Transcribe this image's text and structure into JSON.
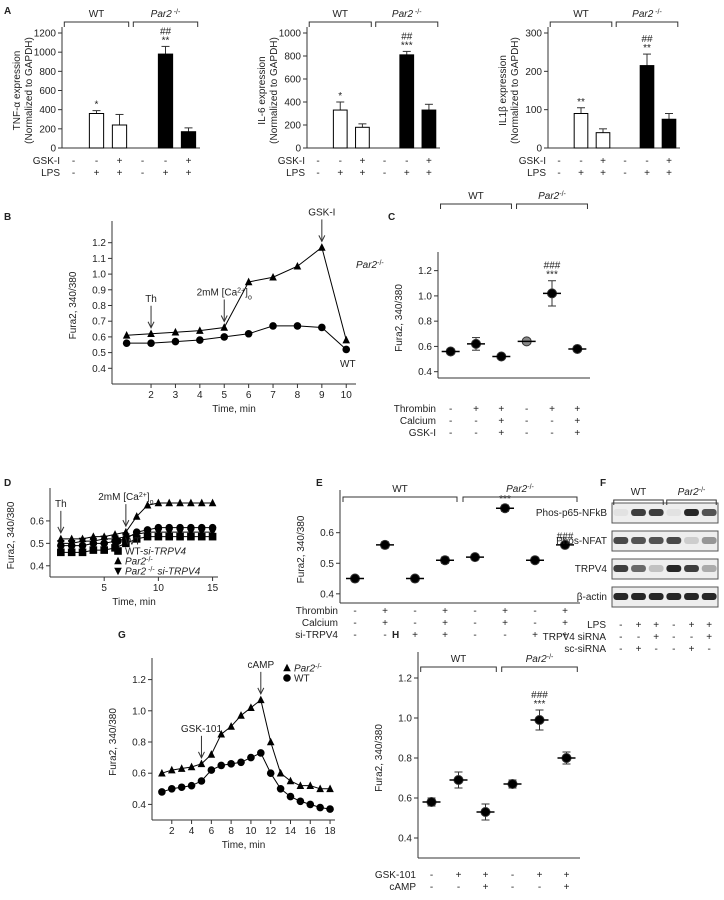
{
  "chart_data": [
    {
      "type": "bar",
      "panel": "A",
      "ylabel": [
        "TNF-α expression",
        "(Normalized to GAPDH)"
      ],
      "groups": [
        {
          "name": "WT"
        },
        {
          "name": [
            {
              "text": "Par2",
              "style": "italic"
            },
            {
              "text": " -/-",
              "style": "sup"
            }
          ]
        }
      ],
      "values": [
        null,
        360,
        240,
        null,
        980,
        170
      ],
      "errors": [
        null,
        30,
        110,
        null,
        80,
        40
      ],
      "colors": [
        "#ffffff",
        "#ffffff",
        "#ffffff",
        "#000000",
        "#000000",
        "#000000"
      ],
      "annotations": [
        null,
        [
          "*"
        ],
        null,
        null,
        [
          "##",
          "**"
        ],
        null
      ],
      "rows": [
        {
          "label": "GSK-I",
          "signs": [
            "-",
            "-",
            "+",
            "-",
            "-",
            "+"
          ]
        },
        {
          "label": "LPS",
          "signs": [
            "-",
            "+",
            "+",
            "-",
            "+",
            "+"
          ]
        }
      ],
      "ylim": [
        0,
        1200
      ],
      "yticks": [
        0,
        200,
        400,
        600,
        800,
        1000,
        1200
      ]
    },
    {
      "type": "bar",
      "ylabel": [
        "IL-6 expression",
        "(Normalized to GAPDH)"
      ],
      "groups": [
        {
          "name": "WT"
        },
        {
          "name": [
            {
              "text": "Par2",
              "style": "italic"
            },
            {
              "text": " -/-",
              "style": "sup"
            }
          ]
        }
      ],
      "values": [
        null,
        330,
        180,
        null,
        810,
        330
      ],
      "errors": [
        null,
        70,
        30,
        null,
        30,
        50
      ],
      "colors": [
        "#ffffff",
        "#ffffff",
        "#ffffff",
        "#000000",
        "#000000",
        "#000000"
      ],
      "annotations": [
        null,
        [
          "*"
        ],
        null,
        null,
        [
          "##",
          "***"
        ],
        null
      ],
      "rows": [
        {
          "label": "GSK-I",
          "signs": [
            "-",
            "-",
            "+",
            "-",
            "-",
            "+"
          ]
        },
        {
          "label": "LPS",
          "signs": [
            "-",
            "+",
            "+",
            "-",
            "+",
            "+"
          ]
        }
      ],
      "ylim": [
        0,
        1000
      ],
      "yticks": [
        0,
        200,
        400,
        600,
        800,
        1000
      ]
    },
    {
      "type": "bar",
      "ylabel": [
        "IL1β expression",
        "(Normalized to GAPDH)"
      ],
      "groups": [
        {
          "name": "WT"
        },
        {
          "name": [
            {
              "text": "Par2",
              "style": "italic"
            },
            {
              "text": " -/-",
              "style": "sup"
            }
          ]
        }
      ],
      "values": [
        null,
        90,
        40,
        null,
        215,
        75
      ],
      "errors": [
        null,
        15,
        10,
        null,
        30,
        15
      ],
      "colors": [
        "#ffffff",
        "#ffffff",
        "#ffffff",
        "#000000",
        "#000000",
        "#000000"
      ],
      "annotations": [
        null,
        [
          "**"
        ],
        null,
        null,
        [
          "##",
          "**"
        ],
        null
      ],
      "rows": [
        {
          "label": "GSK-I",
          "signs": [
            "-",
            "-",
            "+",
            "-",
            "-",
            "+"
          ]
        },
        {
          "label": "LPS",
          "signs": [
            "-",
            "+",
            "+",
            "-",
            "+",
            "+"
          ]
        }
      ],
      "ylim": [
        0,
        300
      ],
      "yticks": [
        0,
        100,
        200,
        300
      ]
    },
    {
      "type": "line",
      "panel": "B",
      "ylabel": "Fura2, 340/380",
      "xlabel": "Time, min",
      "x": [
        1,
        2,
        3,
        4,
        5,
        6,
        7,
        8,
        9,
        10
      ],
      "series": [
        {
          "name": "WT",
          "marker": "circle",
          "color": "#000000",
          "values": [
            0.56,
            0.56,
            0.57,
            0.58,
            0.6,
            0.62,
            0.67,
            0.67,
            0.66,
            0.52
          ]
        },
        {
          "name": [
            {
              "text": "Par2",
              "style": "italic"
            },
            {
              "text": "-/-",
              "style": "sup"
            }
          ],
          "marker": "triangle",
          "color": "#000000",
          "values": [
            0.61,
            0.62,
            0.63,
            0.64,
            0.66,
            0.95,
            0.98,
            1.05,
            1.17,
            0.58
          ]
        }
      ],
      "annotations": [
        {
          "text": "Th",
          "x": 2
        },
        {
          "text": [
            {
              "text": "2mM [Ca"
            },
            {
              "text": "2+",
              "style": "sup"
            },
            {
              "text": "]"
            },
            {
              "text": "o",
              "style": "sub"
            }
          ],
          "x": 5
        },
        {
          "text": "GSK-I",
          "x": 9
        }
      ],
      "legend": "inline",
      "xlim": [
        0.4,
        10.4
      ],
      "xticks": [
        2,
        3,
        4,
        5,
        6,
        7,
        8,
        9,
        10
      ],
      "ylim": [
        0.3,
        1.3
      ],
      "yticks": [
        0.4,
        0.5,
        0.6,
        0.7,
        0.8,
        0.9,
        {
          "value": 1,
          "label": "1.0"
        },
        1.1,
        1.2
      ]
    },
    {
      "type": "dot",
      "panel": "C",
      "ylabel": "Fura2, 340/380",
      "groups": [
        {
          "name": "WT"
        },
        {
          "name": [
            {
              "text": "Par2",
              "style": "italic"
            },
            {
              "text": "-/-",
              "style": "sup"
            }
          ]
        }
      ],
      "values": [
        0.56,
        0.62,
        0.52,
        0.64,
        1.02,
        0.58
      ],
      "errors": [
        0.02,
        0.05,
        0.01,
        0.02,
        0.1,
        0.02
      ],
      "colors": [
        "#000000",
        "#000000",
        "#000000",
        "#888888",
        "#000000",
        "#000000"
      ],
      "annotations": [
        null,
        null,
        null,
        null,
        [
          "###",
          "***"
        ],
        null
      ],
      "rows": [
        {
          "label": "Thrombin",
          "signs": [
            "-",
            "+",
            "+",
            "-",
            "+",
            "+"
          ]
        },
        {
          "label": "Calcium",
          "signs": [
            "-",
            "-",
            "+",
            "-",
            "-",
            "+"
          ]
        },
        {
          "label": "GSK-I",
          "signs": [
            "-",
            "-",
            "+",
            "-",
            "-",
            "+"
          ]
        }
      ],
      "ylim": [
        0.35,
        1.3
      ],
      "yticks": [
        0.4,
        0.6,
        0.8,
        {
          "value": 1,
          "label": "1.0"
        },
        1.2
      ]
    },
    {
      "type": "line",
      "panel": "D",
      "ylabel": "Fura2, 340/380",
      "xlabel": "Time, min",
      "x": [
        1,
        2,
        3,
        4,
        5,
        6,
        7,
        8,
        9,
        10,
        11,
        12,
        13,
        14,
        15
      ],
      "series": [
        {
          "name": "WT",
          "marker": "circle",
          "color": "#000000",
          "values": [
            0.49,
            0.49,
            0.49,
            0.5,
            0.5,
            0.51,
            0.52,
            0.55,
            0.56,
            0.57,
            0.57,
            0.57,
            0.57,
            0.57,
            0.57
          ]
        },
        {
          "name": [
            {
              "text": "WT-"
            },
            {
              "text": "si-TRPV4",
              "style": "italic"
            }
          ],
          "marker": "square",
          "color": "#000000",
          "values": [
            0.46,
            0.46,
            0.46,
            0.47,
            0.47,
            0.48,
            0.5,
            0.52,
            0.53,
            0.53,
            0.53,
            0.53,
            0.53,
            0.53,
            0.53
          ]
        },
        {
          "name": [
            {
              "text": "Par2",
              "style": "italic"
            },
            {
              "text": "-/-",
              "style": "sup"
            }
          ],
          "marker": "triangle",
          "color": "#000000",
          "values": [
            0.52,
            0.52,
            0.52,
            0.53,
            0.53,
            0.54,
            0.55,
            0.62,
            0.67,
            0.68,
            0.68,
            0.68,
            0.68,
            0.68,
            0.68
          ]
        },
        {
          "name": [
            {
              "text": "Par2",
              "style": "italic"
            },
            {
              "text": " -/-",
              "style": "sup"
            },
            {
              "text": " si-TRPV4",
              "style": "italic"
            }
          ],
          "marker": "triangle-down",
          "color": "#000000",
          "values": [
            0.5,
            0.5,
            0.51,
            0.51,
            0.52,
            0.52,
            0.53,
            0.54,
            0.55,
            0.55,
            0.55,
            0.55,
            0.55,
            0.55,
            0.55
          ]
        }
      ],
      "annotations": [
        {
          "text": "Th",
          "x": 1
        },
        {
          "text": [
            {
              "text": "2mM [Ca"
            },
            {
              "text": "2+",
              "style": "sup"
            },
            {
              "text": "]"
            },
            {
              "text": "o",
              "style": "sub"
            }
          ],
          "x": 7
        }
      ],
      "legend": "bottom-right",
      "xlim": [
        0,
        15.5
      ],
      "xticks": [
        5,
        10,
        15
      ],
      "ylim": [
        0.35,
        0.72
      ],
      "yticks": [
        0.4,
        0.5,
        0.6
      ]
    },
    {
      "type": "dot",
      "panel": "E",
      "ylabel": "Fura2, 340/380",
      "groups": [
        {
          "name": "WT"
        },
        {
          "name": [
            {
              "text": "Par2",
              "style": "italic"
            },
            {
              "text": "-/-",
              "style": "sup"
            }
          ]
        }
      ],
      "values": [
        0.45,
        0.56,
        0.45,
        0.51,
        0.52,
        0.68,
        0.51,
        0.56
      ],
      "errors": [
        0.005,
        0.01,
        0.005,
        0.01,
        0.008,
        0.01,
        0.005,
        0.008
      ],
      "colors": [
        "#000000",
        "#000000",
        "#000000",
        "#000000",
        "#000000",
        "#000000",
        "#000000",
        "#000000"
      ],
      "annotations": [
        null,
        null,
        null,
        null,
        null,
        [
          "***"
        ],
        null,
        [
          "###"
        ]
      ],
      "rows": [
        {
          "label": "Thrombin",
          "signs": [
            "-",
            "+",
            "-",
            "+",
            "-",
            "+",
            "-",
            "+"
          ]
        },
        {
          "label": "Calcium",
          "signs": [
            "-",
            "+",
            "-",
            "+",
            "-",
            "+",
            "-",
            "+"
          ]
        },
        {
          "label": "si-TRPV4",
          "signs": [
            "-",
            "-",
            "+",
            "+",
            "-",
            "-",
            "+",
            "+"
          ]
        }
      ],
      "ylim": [
        0.37,
        0.72
      ],
      "yticks": [
        0.4,
        0.5,
        0.6
      ]
    },
    {
      "type": "blot",
      "panel": "F",
      "groups": [
        {
          "name": "WT"
        },
        {
          "name": [
            {
              "text": "Par2",
              "style": "italic"
            },
            {
              "text": "-/-",
              "style": "sup"
            }
          ]
        }
      ],
      "bands": [
        "Phos-p65-NFkB",
        "Phos-NFAT",
        "TRPV4",
        "β-actin"
      ],
      "rows": [
        {
          "label": "LPS",
          "signs": [
            "-",
            "+",
            "+",
            "-",
            "+",
            "+"
          ]
        },
        {
          "label": "TRPV4 siRNA",
          "signs": [
            "-",
            "-",
            "+",
            "-",
            "-",
            "+"
          ]
        },
        {
          "label": "sc-siRNA",
          "signs": [
            "-",
            "+",
            "-",
            "-",
            "+",
            "-"
          ]
        }
      ]
    },
    {
      "type": "line",
      "panel": "G",
      "ylabel": "Fura2, 340/380",
      "xlabel": "Time, min",
      "x": [
        1,
        2,
        3,
        4,
        5,
        6,
        7,
        8,
        9,
        10,
        11,
        12,
        13,
        14,
        15,
        16,
        17,
        18
      ],
      "series": [
        {
          "name": [
            {
              "text": "Par2",
              "style": "italic"
            },
            {
              "text": "-/-",
              "style": "sup"
            }
          ],
          "marker": "triangle",
          "color": "#000000",
          "values": [
            0.6,
            0.62,
            0.63,
            0.64,
            0.66,
            0.72,
            0.85,
            0.9,
            0.97,
            1.02,
            1.07,
            0.8,
            0.6,
            0.55,
            0.52,
            0.52,
            0.5,
            0.5
          ]
        },
        {
          "name": "WT",
          "marker": "circle",
          "color": "#000000",
          "values": [
            0.48,
            0.5,
            0.51,
            0.52,
            0.55,
            0.62,
            0.65,
            0.66,
            0.67,
            0.7,
            0.73,
            0.6,
            0.5,
            0.45,
            0.42,
            0.4,
            0.38,
            0.37
          ]
        }
      ],
      "annotations": [
        {
          "text": "GSK-101",
          "x": 5
        },
        {
          "text": "cAMP",
          "x": 11
        }
      ],
      "legend": "top-right",
      "xlim": [
        0,
        18.5
      ],
      "xticks": [
        2,
        4,
        6,
        8,
        10,
        12,
        14,
        16,
        18
      ],
      "ylim": [
        0.3,
        1.3
      ],
      "yticks": [
        0.4,
        0.6,
        0.8,
        {
          "value": 1,
          "label": "1.0"
        },
        1.2
      ]
    },
    {
      "type": "dot",
      "panel": "H",
      "ylabel": "Fura2, 340/380",
      "groups": [
        {
          "name": "WT"
        },
        {
          "name": [
            {
              "text": "Par2",
              "style": "italic"
            },
            {
              "text": "-/-",
              "style": "sup"
            }
          ]
        }
      ],
      "values": [
        0.58,
        0.69,
        0.53,
        0.67,
        0.99,
        0.8
      ],
      "errors": [
        0.02,
        0.04,
        0.04,
        0.02,
        0.05,
        0.03
      ],
      "colors": [
        "#000000",
        "#000000",
        "#000000",
        "#000000",
        "#000000",
        "#000000"
      ],
      "annotations": [
        null,
        null,
        null,
        null,
        [
          "###",
          "***"
        ],
        null
      ],
      "rows": [
        {
          "label": "GSK-101",
          "signs": [
            "-",
            "+",
            "+",
            "-",
            "+",
            "+"
          ]
        },
        {
          "label": "cAMP",
          "signs": [
            "-",
            "-",
            "+",
            "-",
            "-",
            "+"
          ]
        }
      ],
      "ylim": [
        0.3,
        1.3
      ],
      "yticks": [
        0.4,
        0.6,
        0.8,
        {
          "value": 1,
          "label": "1.0"
        },
        1.2
      ]
    }
  ]
}
